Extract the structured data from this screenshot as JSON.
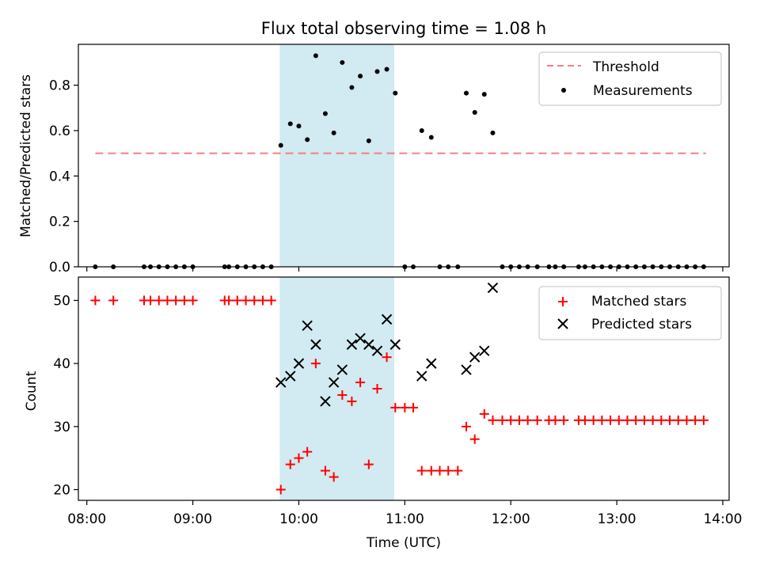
{
  "chart_data": [
    {
      "type": "scatter",
      "title": "Flux total observing time = 1.08 h",
      "xlabel": "",
      "ylabel": "Matched/Predicted stars",
      "xlim": [
        7.92,
        14.06
      ],
      "ylim": [
        0,
        0.98
      ],
      "yticks": [
        0.0,
        0.2,
        0.4,
        0.6,
        0.8
      ],
      "ytick_labels": [
        "0.0",
        "0.2",
        "0.4",
        "0.6",
        "0.8"
      ],
      "shaded_span": {
        "x_start": 9.82,
        "x_end": 10.9,
        "color": "#add8e6"
      },
      "threshold": {
        "name": "Threshold",
        "value": 0.5,
        "x_start": 8.08,
        "x_end": 13.84,
        "color": "#f08080",
        "style": "dashed"
      },
      "series": [
        {
          "name": "Measurements",
          "marker": "dot",
          "color": "#000000",
          "points": [
            [
              8.08,
              0
            ],
            [
              8.25,
              0
            ],
            [
              8.54,
              0
            ],
            [
              8.6,
              0
            ],
            [
              8.68,
              0
            ],
            [
              8.76,
              0
            ],
            [
              8.84,
              0
            ],
            [
              8.92,
              0
            ],
            [
              9.0,
              0
            ],
            [
              9.3,
              0
            ],
            [
              9.34,
              0
            ],
            [
              9.42,
              0
            ],
            [
              9.5,
              0
            ],
            [
              9.58,
              0
            ],
            [
              9.66,
              0
            ],
            [
              9.74,
              0
            ],
            [
              9.83,
              0.535
            ],
            [
              9.92,
              0.63
            ],
            [
              10.0,
              0.62
            ],
            [
              10.08,
              0.56
            ],
            [
              10.16,
              0.93
            ],
            [
              10.25,
              0.675
            ],
            [
              10.33,
              0.59
            ],
            [
              10.41,
              0.9
            ],
            [
              10.5,
              0.79
            ],
            [
              10.58,
              0.84
            ],
            [
              10.66,
              0.555
            ],
            [
              10.74,
              0.86
            ],
            [
              10.83,
              0.87
            ],
            [
              10.91,
              0.765
            ],
            [
              11.0,
              0
            ],
            [
              11.08,
              0
            ],
            [
              11.16,
              0.6
            ],
            [
              11.25,
              0.57
            ],
            [
              11.33,
              0
            ],
            [
              11.41,
              0
            ],
            [
              11.5,
              0
            ],
            [
              11.58,
              0.765
            ],
            [
              11.66,
              0.68
            ],
            [
              11.75,
              0.76
            ],
            [
              11.83,
              0.59
            ],
            [
              11.92,
              0
            ],
            [
              12.0,
              0
            ],
            [
              12.08,
              0
            ],
            [
              12.16,
              0
            ],
            [
              12.25,
              0
            ],
            [
              12.36,
              0
            ],
            [
              12.42,
              0
            ],
            [
              12.5,
              0
            ],
            [
              12.64,
              0
            ],
            [
              12.7,
              0
            ],
            [
              12.78,
              0
            ],
            [
              12.86,
              0
            ],
            [
              12.94,
              0
            ],
            [
              13.02,
              0
            ],
            [
              13.1,
              0
            ],
            [
              13.18,
              0
            ],
            [
              13.26,
              0
            ],
            [
              13.34,
              0
            ],
            [
              13.42,
              0
            ],
            [
              13.5,
              0
            ],
            [
              13.58,
              0
            ],
            [
              13.66,
              0
            ],
            [
              13.74,
              0
            ],
            [
              13.82,
              0
            ]
          ]
        }
      ],
      "legend": {
        "location": "top-right",
        "entries": [
          "Threshold",
          "Measurements"
        ]
      }
    },
    {
      "type": "scatter",
      "title": "",
      "xlabel": "Time (UTC)",
      "ylabel": "Count",
      "xlim": [
        7.92,
        14.06
      ],
      "ylim": [
        18.3,
        53.7
      ],
      "yticks": [
        20,
        30,
        40,
        50
      ],
      "ytick_labels": [
        "20",
        "30",
        "40",
        "50"
      ],
      "xticks": [
        8,
        9,
        10,
        11,
        12,
        13,
        14
      ],
      "xtick_labels": [
        "08:00",
        "09:00",
        "10:00",
        "11:00",
        "12:00",
        "13:00",
        "14:00"
      ],
      "shaded_span": {
        "x_start": 9.82,
        "x_end": 10.9,
        "color": "#add8e6"
      },
      "series": [
        {
          "name": "Matched stars",
          "marker": "plus",
          "color": "#ff0000",
          "points": [
            [
              8.08,
              50
            ],
            [
              8.25,
              50
            ],
            [
              8.54,
              50
            ],
            [
              8.6,
              50
            ],
            [
              8.68,
              50
            ],
            [
              8.76,
              50
            ],
            [
              8.84,
              50
            ],
            [
              8.92,
              50
            ],
            [
              9.0,
              50
            ],
            [
              9.3,
              50
            ],
            [
              9.34,
              50
            ],
            [
              9.42,
              50
            ],
            [
              9.5,
              50
            ],
            [
              9.58,
              50
            ],
            [
              9.66,
              50
            ],
            [
              9.74,
              50
            ],
            [
              9.83,
              20
            ],
            [
              9.92,
              24
            ],
            [
              10.0,
              25
            ],
            [
              10.08,
              26
            ],
            [
              10.16,
              40
            ],
            [
              10.25,
              23
            ],
            [
              10.33,
              22
            ],
            [
              10.41,
              35
            ],
            [
              10.5,
              34
            ],
            [
              10.58,
              37
            ],
            [
              10.66,
              24
            ],
            [
              10.74,
              36
            ],
            [
              10.83,
              41
            ],
            [
              10.91,
              33
            ],
            [
              11.0,
              33
            ],
            [
              11.08,
              33
            ],
            [
              11.16,
              23
            ],
            [
              11.25,
              23
            ],
            [
              11.33,
              23
            ],
            [
              11.41,
              23
            ],
            [
              11.5,
              23
            ],
            [
              11.58,
              30
            ],
            [
              11.66,
              28
            ],
            [
              11.75,
              32
            ],
            [
              11.83,
              31
            ],
            [
              11.92,
              31
            ],
            [
              12.0,
              31
            ],
            [
              12.08,
              31
            ],
            [
              12.16,
              31
            ],
            [
              12.25,
              31
            ],
            [
              12.36,
              31
            ],
            [
              12.42,
              31
            ],
            [
              12.5,
              31
            ],
            [
              12.64,
              31
            ],
            [
              12.7,
              31
            ],
            [
              12.78,
              31
            ],
            [
              12.86,
              31
            ],
            [
              12.94,
              31
            ],
            [
              13.02,
              31
            ],
            [
              13.1,
              31
            ],
            [
              13.18,
              31
            ],
            [
              13.26,
              31
            ],
            [
              13.34,
              31
            ],
            [
              13.42,
              31
            ],
            [
              13.5,
              31
            ],
            [
              13.58,
              31
            ],
            [
              13.66,
              31
            ],
            [
              13.74,
              31
            ],
            [
              13.82,
              31
            ]
          ]
        },
        {
          "name": "Predicted stars",
          "marker": "x",
          "color": "#000000",
          "points": [
            [
              9.83,
              37
            ],
            [
              9.92,
              38
            ],
            [
              10.0,
              40
            ],
            [
              10.08,
              46
            ],
            [
              10.16,
              43
            ],
            [
              10.25,
              34
            ],
            [
              10.33,
              37
            ],
            [
              10.41,
              39
            ],
            [
              10.5,
              43
            ],
            [
              10.58,
              44
            ],
            [
              10.66,
              43
            ],
            [
              10.74,
              42
            ],
            [
              10.83,
              47
            ],
            [
              10.91,
              43
            ],
            [
              11.16,
              38
            ],
            [
              11.25,
              40
            ],
            [
              11.58,
              39
            ],
            [
              11.66,
              41
            ],
            [
              11.75,
              42
            ],
            [
              11.83,
              52
            ]
          ]
        }
      ],
      "legend": {
        "location": "top-right",
        "entries": [
          "Matched stars",
          "Predicted stars"
        ]
      }
    }
  ]
}
